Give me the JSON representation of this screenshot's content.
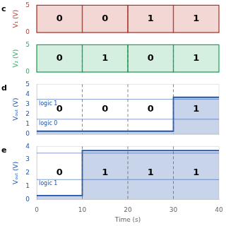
{
  "chart_data": [
    {
      "type": "segments",
      "panel_label": "c",
      "ylabel": "V₁ (V)",
      "bins": [
        0,
        10,
        20,
        30,
        40
      ],
      "values": [
        0,
        0,
        1,
        1
      ],
      "color": "#c0392b",
      "data_labels": true,
      "xlim": [
        0,
        40
      ],
      "ylim": [
        0,
        5
      ],
      "yticks": [
        0,
        5
      ],
      "grid": false,
      "tick_labels": "y"
    },
    {
      "type": "segments",
      "ylabel": "V₂ (V)",
      "bins": [
        0,
        10,
        20,
        30,
        40
      ],
      "values": [
        0,
        1,
        0,
        1
      ],
      "color": "#27ae60",
      "data_labels": true,
      "xlim": [
        0,
        40
      ],
      "ylim": [
        0,
        5
      ],
      "yticks": [
        0,
        5
      ],
      "grid": false,
      "tick_labels": "y"
    },
    {
      "type": "step",
      "panel_label": "d",
      "ylabel": "Vₒᵤₜ (V)",
      "bins": [
        0,
        10,
        20,
        30,
        40
      ],
      "values": [
        0.3,
        0.3,
        0.3,
        3.7
      ],
      "color": "#2255aa",
      "segment_labels": [
        "0",
        "0",
        "0",
        "1"
      ],
      "lines": [
        {
          "y": 1.5,
          "label": "logic 0"
        },
        {
          "y": 3.5,
          "label": "logic 1"
        }
      ],
      "xlim": [
        0,
        40
      ],
      "ylim": [
        0,
        5
      ],
      "yticks": [
        0,
        1,
        2,
        3,
        4,
        5
      ],
      "grid": false,
      "tick_labels": "y"
    },
    {
      "type": "step",
      "panel_label": "e",
      "ylabel": "Vₒᵤₜ (V)",
      "xlabel": "Time (s)",
      "bins": [
        0,
        10,
        20,
        30,
        40
      ],
      "values": [
        0.3,
        3.7,
        3.7,
        3.7
      ],
      "color": "#2255aa",
      "segment_labels": [
        "0",
        "1",
        "1",
        "1"
      ],
      "lines": [
        {
          "y": 1.5,
          "label": "logic 1"
        },
        {
          "y": 3.5
        }
      ],
      "xlim": [
        0,
        40
      ],
      "ylim": [
        0,
        4
      ],
      "yticks": [
        0,
        1,
        2,
        3,
        4
      ],
      "xticks": [
        0,
        10,
        20,
        30,
        40
      ],
      "grid": false
    }
  ]
}
